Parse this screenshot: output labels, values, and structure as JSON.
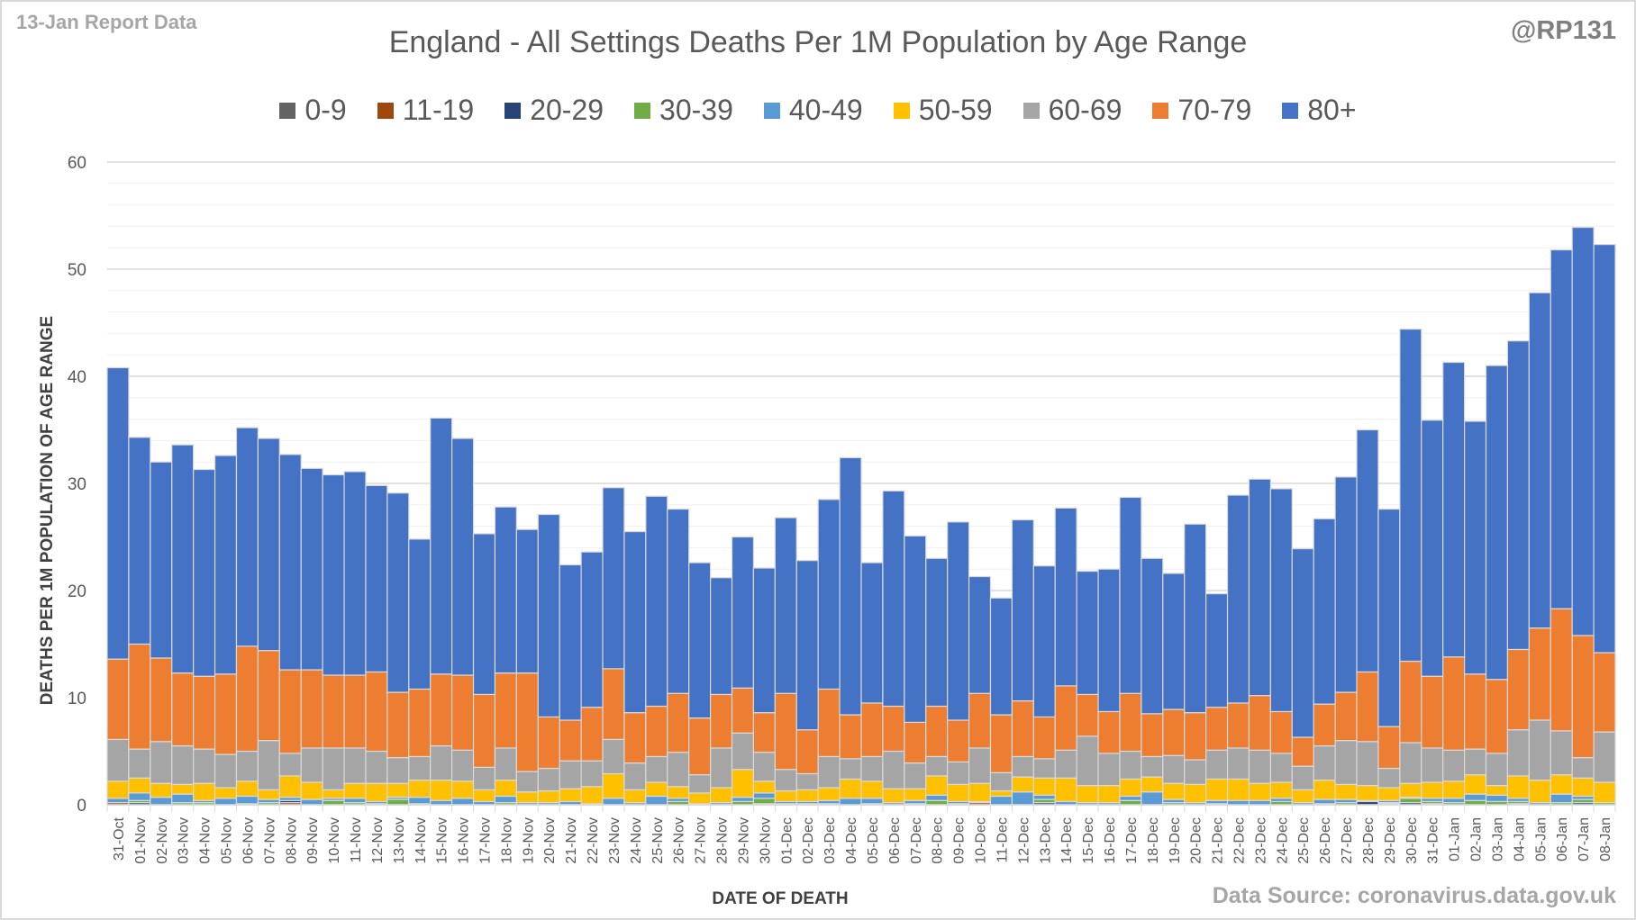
{
  "header": {
    "report_label": "13-Jan Report Data",
    "handle": "@RP131",
    "source": "Data Source: coronavirus.data.gov.uk"
  },
  "chart_data": {
    "type": "bar",
    "stacked": true,
    "title": "England - All Settings Deaths Per 1M Population by Age Range",
    "xlabel": "DATE OF DEATH",
    "ylabel": "DEATHS PER 1M POPULATION OF AGE RANGE",
    "ylim": [
      0,
      60
    ],
    "yticks": [
      0,
      10,
      20,
      30,
      40,
      50,
      60
    ],
    "grid": true,
    "legend_position": "top",
    "categories": [
      "31-Oct",
      "01-Nov",
      "02-Nov",
      "03-Nov",
      "04-Nov",
      "05-Nov",
      "06-Nov",
      "07-Nov",
      "08-Nov",
      "09-Nov",
      "10-Nov",
      "11-Nov",
      "12-Nov",
      "13-Nov",
      "14-Nov",
      "15-Nov",
      "16-Nov",
      "17-Nov",
      "18-Nov",
      "19-Nov",
      "20-Nov",
      "21-Nov",
      "22-Nov",
      "23-Nov",
      "24-Nov",
      "25-Nov",
      "26-Nov",
      "27-Nov",
      "28-Nov",
      "29-Nov",
      "30-Nov",
      "01-Dec",
      "02-Dec",
      "03-Dec",
      "04-Dec",
      "05-Dec",
      "06-Dec",
      "07-Dec",
      "08-Dec",
      "09-Dec",
      "10-Dec",
      "11-Dec",
      "12-Dec",
      "13-Dec",
      "14-Dec",
      "15-Dec",
      "16-Dec",
      "17-Dec",
      "18-Dec",
      "19-Dec",
      "20-Dec",
      "21-Dec",
      "22-Dec",
      "23-Dec",
      "24-Dec",
      "25-Dec",
      "26-Dec",
      "27-Dec",
      "28-Dec",
      "29-Dec",
      "30-Dec",
      "31-Dec",
      "01-Jan",
      "02-Jan",
      "03-Jan",
      "04-Jan",
      "05-Jan",
      "06-Jan",
      "07-Jan",
      "08-Jan"
    ],
    "series": [
      {
        "name": "0-9",
        "color": "#636363",
        "values": [
          0,
          0,
          0,
          0,
          0,
          0,
          0,
          0,
          0,
          0,
          0,
          0,
          0,
          0,
          0,
          0,
          0,
          0,
          0,
          0,
          0,
          0,
          0,
          0,
          0,
          0,
          0,
          0,
          0,
          0,
          0,
          0,
          0,
          0,
          0,
          0,
          0,
          0,
          0,
          0,
          0,
          0,
          0,
          0,
          0,
          0,
          0,
          0,
          0,
          0,
          0,
          0,
          0,
          0,
          0,
          0,
          0,
          0,
          0,
          0,
          0,
          0,
          0,
          0,
          0,
          0,
          0,
          0,
          0,
          0
        ]
      },
      {
        "name": "11-19",
        "color": "#9e480e",
        "values": [
          0.2,
          0,
          0,
          0,
          0,
          0,
          0,
          0,
          0.2,
          0,
          0,
          0,
          0.1,
          0,
          0,
          0,
          0,
          0,
          0,
          0,
          0,
          0,
          0,
          0,
          0,
          0,
          0,
          0,
          0,
          0,
          0,
          0,
          0.1,
          0,
          0,
          0,
          0,
          0,
          0,
          0.1,
          0.2,
          0,
          0,
          0,
          0,
          0,
          0,
          0,
          0,
          0,
          0,
          0.1,
          0,
          0,
          0,
          0,
          0,
          0,
          0,
          0.1,
          0,
          0,
          0,
          0,
          0,
          0,
          0,
          0,
          0,
          0
        ]
      },
      {
        "name": "20-29",
        "color": "#264478",
        "values": [
          0,
          0.2,
          0,
          0,
          0,
          0,
          0,
          0,
          0.2,
          0,
          0,
          0,
          0,
          0,
          0,
          0,
          0,
          0,
          0,
          0,
          0,
          0,
          0,
          0,
          0,
          0,
          0,
          0,
          0,
          0,
          0.1,
          0,
          0,
          0,
          0,
          0,
          0,
          0,
          0,
          0,
          0,
          0,
          0,
          0.2,
          0,
          0,
          0,
          0,
          0,
          0,
          0,
          0,
          0,
          0,
          0,
          0,
          0,
          0,
          0.3,
          0,
          0.2,
          0.1,
          0,
          0,
          0,
          0.1,
          0,
          0,
          0.2,
          0
        ]
      },
      {
        "name": "30-39",
        "color": "#70ad47",
        "values": [
          0,
          0.2,
          0,
          0.2,
          0.2,
          0,
          0.1,
          0.2,
          0,
          0,
          0.4,
          0.2,
          0,
          0.5,
          0.1,
          0,
          0,
          0,
          0.2,
          0,
          0,
          0,
          0,
          0,
          0,
          0,
          0.3,
          0,
          0,
          0.3,
          0.5,
          0.1,
          0,
          0.1,
          0,
          0.1,
          0,
          0.1,
          0.4,
          0,
          0,
          0,
          0,
          0.3,
          0,
          0,
          0,
          0.4,
          0,
          0.2,
          0,
          0,
          0,
          0,
          0.3,
          0,
          0.1,
          0.2,
          0,
          0.1,
          0.4,
          0.2,
          0.2,
          0.4,
          0.3,
          0.2,
          0,
          0.2,
          0.3,
          0.2
        ]
      },
      {
        "name": "40-49",
        "color": "#5b9bd5",
        "values": [
          0.4,
          0.7,
          0.7,
          0.8,
          0.2,
          0.6,
          0.7,
          0.3,
          0.3,
          0.5,
          0.2,
          0.4,
          0.2,
          0.2,
          0.6,
          0.4,
          0.6,
          0.3,
          0.6,
          0.2,
          0.2,
          0.3,
          0.1,
          0.6,
          0.2,
          0.8,
          0.3,
          0.1,
          0.2,
          0.4,
          0.5,
          0.2,
          0.2,
          0.3,
          0.6,
          0.5,
          0.2,
          0.3,
          0.5,
          0.2,
          0.1,
          0.8,
          1.2,
          0.4,
          0.3,
          0.2,
          0.2,
          0.4,
          1.2,
          0.3,
          0.2,
          0.3,
          0.4,
          0.4,
          0.3,
          0.2,
          0.4,
          0.3,
          0.1,
          0.2,
          0.1,
          0.3,
          0.4,
          0.6,
          0.6,
          0.3,
          0.2,
          0.8,
          0.3,
          0
        ]
      },
      {
        "name": "50-59",
        "color": "#ffc000",
        "values": [
          1.6,
          1.4,
          1.3,
          0.9,
          1.6,
          1.0,
          1.4,
          0.9,
          2.0,
          1.6,
          0.8,
          1.4,
          1.7,
          1.3,
          1.6,
          1.9,
          1.6,
          1.1,
          1.5,
          1.0,
          1.1,
          1.2,
          1.6,
          2.3,
          1.2,
          1.3,
          1.1,
          1.0,
          1.4,
          2.6,
          1.1,
          1.0,
          1.1,
          1.2,
          1.8,
          1.6,
          1.3,
          1.1,
          1.8,
          1.6,
          1.7,
          0.5,
          1.4,
          1.6,
          2.2,
          1.6,
          1.6,
          1.6,
          1.4,
          1.5,
          1.7,
          2.0,
          2.0,
          1.6,
          1.5,
          1.2,
          1.8,
          1.4,
          1.4,
          1.2,
          1.3,
          1.5,
          1.6,
          1.8,
          0.9,
          2.1,
          2.1,
          1.8,
          1.7,
          1.9
        ]
      },
      {
        "name": "60-69",
        "color": "#a5a5a5",
        "values": [
          3.9,
          2.7,
          3.9,
          3.6,
          3.2,
          3.1,
          2.8,
          4.6,
          2.1,
          3.2,
          3.9,
          3.3,
          3.0,
          2.4,
          2.2,
          3.2,
          2.9,
          2.1,
          3.0,
          1.9,
          2.1,
          2.6,
          2.4,
          3.2,
          2.5,
          2.4,
          3.2,
          1.7,
          3.7,
          3.4,
          2.7,
          2.0,
          1.5,
          2.9,
          1.9,
          2.3,
          3.5,
          2.4,
          1.8,
          2.1,
          3.3,
          1.7,
          1.9,
          1.8,
          2.6,
          4.6,
          3.0,
          2.6,
          1.9,
          2.6,
          2.3,
          2.7,
          2.9,
          3.1,
          2.7,
          2.2,
          3.2,
          4.1,
          4.1,
          1.8,
          3.8,
          3.2,
          2.9,
          2.4,
          3.0,
          4.3,
          5.6,
          4.1,
          1.9,
          4.7
        ]
      },
      {
        "name": "70-79",
        "color": "#ed7d31",
        "values": [
          7.5,
          9.8,
          7.8,
          6.8,
          6.8,
          7.5,
          9.8,
          8.4,
          7.8,
          7.3,
          6.8,
          6.8,
          7.4,
          6.1,
          6.3,
          6.7,
          7.0,
          6.8,
          7.0,
          9.2,
          4.8,
          3.8,
          5.0,
          6.6,
          4.7,
          4.7,
          5.5,
          5.3,
          5.0,
          4.2,
          3.7,
          7.1,
          4.1,
          6.3,
          4.1,
          5.0,
          4.2,
          3.8,
          4.7,
          3.9,
          5.1,
          5.4,
          5.2,
          3.9,
          6.0,
          3.9,
          3.9,
          5.4,
          4.0,
          4.3,
          4.4,
          4.0,
          4.2,
          5.1,
          3.9,
          2.7,
          3.9,
          4.5,
          6.5,
          3.9,
          7.6,
          6.7,
          8.7,
          7.0,
          6.9,
          7.5,
          8.6,
          11.4,
          11.4,
          7.4
        ]
      },
      {
        "name": "80+",
        "color": "#4472c4",
        "values": [
          27.2,
          19.3,
          18.3,
          21.3,
          19.3,
          20.4,
          20.4,
          19.8,
          20.1,
          18.8,
          18.7,
          19.0,
          17.4,
          18.6,
          14.0,
          23.9,
          22.1,
          15.0,
          15.5,
          13.4,
          18.9,
          14.5,
          14.5,
          16.9,
          16.9,
          19.6,
          17.2,
          14.5,
          10.9,
          14.1,
          13.5,
          16.4,
          15.8,
          17.7,
          24.0,
          13.1,
          20.1,
          17.4,
          13.8,
          18.5,
          10.9,
          10.9,
          16.9,
          14.1,
          16.6,
          11.5,
          13.3,
          18.3,
          14.5,
          12.7,
          17.6,
          10.6,
          19.4,
          20.2,
          20.8,
          17.6,
          17.3,
          20.1,
          22.6,
          20.3,
          31.0,
          23.9,
          27.5,
          23.6,
          29.3,
          28.8,
          31.3,
          33.5,
          38.1,
          38.1
        ]
      }
    ]
  }
}
